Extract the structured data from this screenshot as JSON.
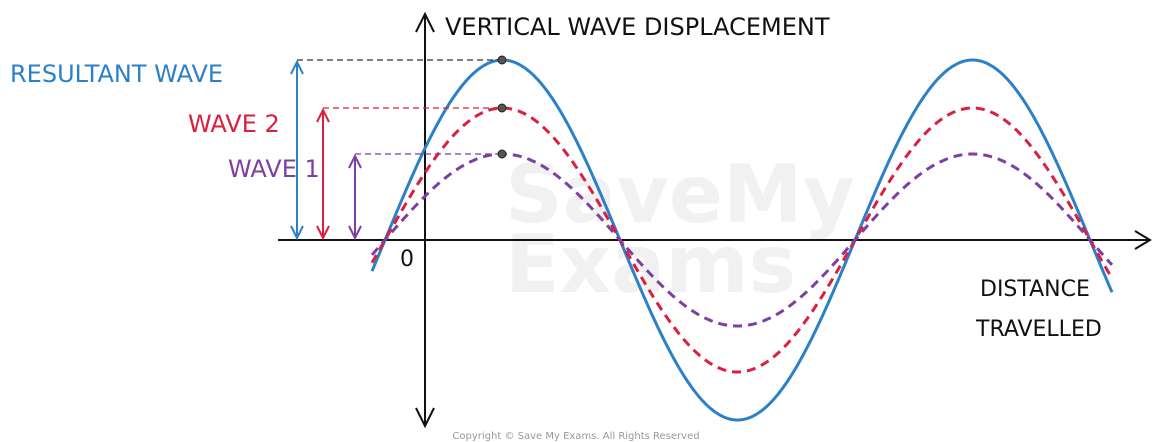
{
  "axes": {
    "y_label": "VERTICAL WAVE DISPLACEMENT",
    "x_label_line1": "DISTANCE",
    "x_label_line2": "TRAVELLED",
    "origin": "0"
  },
  "waves": [
    {
      "label": "RESULTANT WAVE",
      "color": "#2b80c8"
    },
    {
      "label": "WAVE 2",
      "color": "#d9213f"
    },
    {
      "label": "WAVE 1",
      "color": "#7d3fa3"
    }
  ],
  "watermark": {
    "line1": "SaveMy",
    "line2": "Exams"
  },
  "copyright": "Copyright © Save My Exams. All Rights Reserved"
}
